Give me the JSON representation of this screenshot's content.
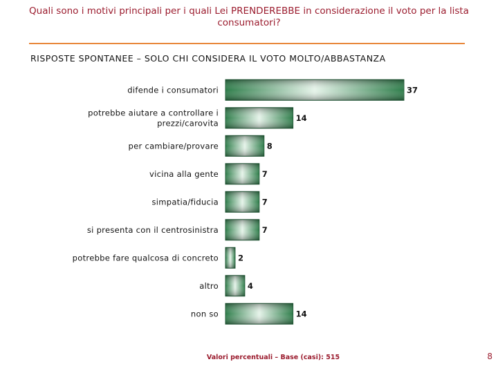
{
  "header": {
    "title": "Quali sono i motivi principali per i quali Lei PRENDEREBBE in considerazione il voto per la lista consumatori?",
    "subtitle": "RISPOSTE SPONTANEE – SOLO CHI CONSIDERA IL VOTO MOLTO/ABBASTANZA"
  },
  "footer": {
    "note": "Valori percentuali – Base (casi): 515",
    "page_number": "8"
  },
  "colors": {
    "title": "#9b1c2e",
    "rule": "#e8873a",
    "bar_dark": "#2e7d4a",
    "bar_light": "#e6f4ea"
  },
  "chart_data": {
    "type": "bar",
    "orientation": "horizontal",
    "categories": [
      [
        "difende i consumatori"
      ],
      [
        "potrebbe aiutare a controllare i",
        "prezzi/carovita"
      ],
      [
        "per cambiare/provare"
      ],
      [
        "vicina alla gente"
      ],
      [
        "simpatia/fiducia"
      ],
      [
        "si presenta con il centrosinistra"
      ],
      [
        "potrebbe fare qualcosa di concreto"
      ],
      [
        "altro"
      ],
      [
        "non so"
      ]
    ],
    "values": [
      37,
      14,
      8,
      7,
      7,
      7,
      2,
      4,
      14
    ],
    "xlim": [
      0,
      37
    ],
    "grid": false,
    "legend": "none"
  }
}
